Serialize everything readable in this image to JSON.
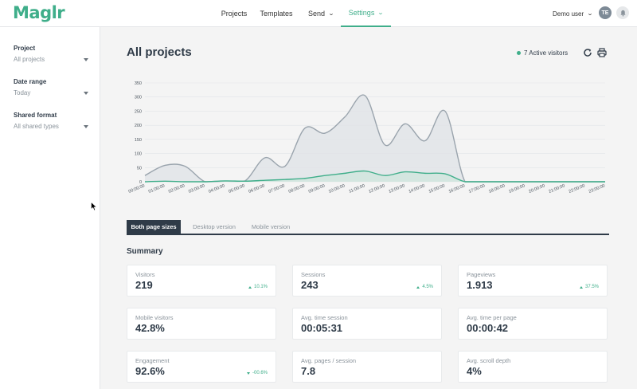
{
  "app": {
    "logo": "Maglr"
  },
  "nav": {
    "items": [
      {
        "label": "Projects"
      },
      {
        "label": "Templates"
      },
      {
        "label": "Send",
        "chevron": "⌄"
      },
      {
        "label": "Settings",
        "chevron": "⌄",
        "active": true
      }
    ],
    "user": "Demo user",
    "user_initials": "TE",
    "accent": "#3fae8a"
  },
  "sidebar": {
    "filters": [
      {
        "label": "Project",
        "value": "All projects"
      },
      {
        "label": "Date range",
        "value": "Today"
      },
      {
        "label": "Shared format",
        "value": "All shared types"
      }
    ]
  },
  "main": {
    "title": "All projects",
    "active_visitors": "7 Active visitors",
    "tabs": [
      {
        "label": "Both page sizes",
        "active": true
      },
      {
        "label": "Desktop version"
      },
      {
        "label": "Mobile version"
      }
    ],
    "summary_title": "Summary",
    "cards": [
      {
        "label": "Visitors",
        "value": "219",
        "delta": "10.1%",
        "direction": "up"
      },
      {
        "label": "Sessions",
        "value": "243",
        "delta": "4.5%",
        "direction": "up"
      },
      {
        "label": "Pageviews",
        "value": "1.913",
        "delta": "37.5%",
        "direction": "up"
      },
      {
        "label": "Mobile visitors",
        "value": "42.8%"
      },
      {
        "label": "Avg. time session",
        "value": "00:05:31"
      },
      {
        "label": "Avg. time per page",
        "value": "00:00:42"
      },
      {
        "label": "Engagement",
        "value": "92.6%",
        "delta": "-00.6%",
        "direction": "down"
      },
      {
        "label": "Avg. pages / session",
        "value": "7.8"
      },
      {
        "label": "Avg. scroll depth",
        "value": "4%"
      }
    ]
  },
  "chart_data": {
    "type": "area",
    "categories": [
      "00:00:00",
      "01:00:00",
      "02:00:00",
      "03:00:00",
      "04:00:00",
      "05:00:00",
      "06:00:00",
      "07:00:00",
      "08:00:00",
      "09:00:00",
      "10:00:00",
      "11:00:00",
      "12:00:00",
      "13:00:00",
      "14:00:00",
      "15:00:00",
      "16:00:00",
      "17:00:00",
      "18:00:00",
      "19:00:00",
      "20:00:00",
      "21:00:00",
      "22:00:00",
      "23:00:00"
    ],
    "yticks": [
      0,
      50,
      100,
      150,
      200,
      250,
      300,
      350
    ],
    "ylim": [
      0,
      350
    ],
    "series": [
      {
        "values": [
          22,
          58,
          55,
          0,
          2,
          3,
          85,
          55,
          190,
          172,
          230,
          305,
          130,
          205,
          145,
          250,
          0,
          0,
          0,
          0,
          0,
          0,
          0,
          0
        ],
        "color": "#9aa4ad",
        "fill": "#dfe3e7"
      },
      {
        "values": [
          0,
          2,
          0,
          0,
          3,
          2,
          5,
          8,
          12,
          22,
          30,
          38,
          22,
          35,
          30,
          28,
          0,
          0,
          0,
          0,
          0,
          0,
          0,
          0
        ],
        "color": "#3fae8a",
        "fill": "#cfe6dc"
      }
    ],
    "grid": true,
    "legend": "none"
  }
}
